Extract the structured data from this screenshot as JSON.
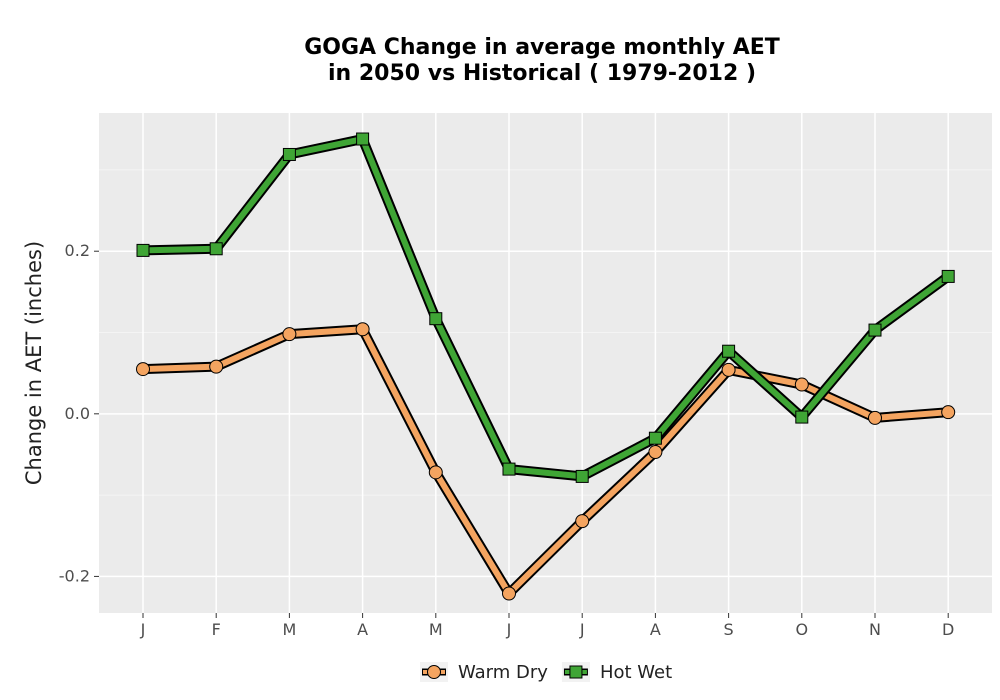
{
  "chart_data": {
    "type": "line",
    "title": [
      "GOGA  Change in average monthly AET",
      "in 2050 vs Historical ( 1979-2012 )"
    ],
    "ylabel": "Change in AET (inches)",
    "xlabel": "",
    "categories": [
      "J",
      "F",
      "M",
      "A",
      "M",
      "J",
      "J",
      "A",
      "S",
      "O",
      "N",
      "D"
    ],
    "yticks": [
      {
        "value": -0.2,
        "label": "-0.2"
      },
      {
        "value": 0.0,
        "label": "0.0"
      },
      {
        "value": 0.2,
        "label": "0.2"
      }
    ],
    "ylim": [
      -0.245,
      0.37
    ],
    "grid": true,
    "legend_position": "bottom",
    "series": [
      {
        "name": "Warm Dry",
        "marker": "circle",
        "color": "#F4A460",
        "values": [
          0.055,
          0.058,
          0.098,
          0.104,
          -0.072,
          -0.221,
          -0.132,
          -0.047,
          0.054,
          0.036,
          -0.005,
          0.002
        ]
      },
      {
        "name": "Hot Wet",
        "marker": "square",
        "color": "#3FA535",
        "values": [
          0.201,
          0.203,
          0.319,
          0.338,
          0.117,
          -0.068,
          -0.077,
          -0.03,
          0.077,
          -0.004,
          0.103,
          0.169
        ]
      }
    ]
  }
}
